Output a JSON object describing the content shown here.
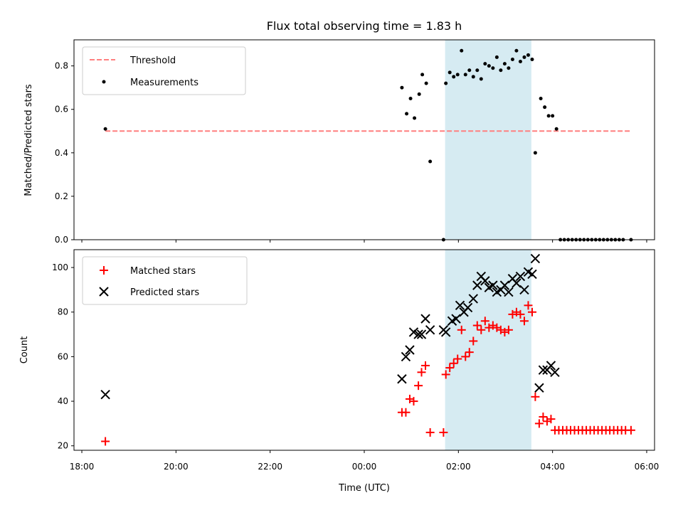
{
  "chart_data": [
    {
      "type": "scatter",
      "title": "Flux total observing time = 1.83 h",
      "xlabel": "",
      "ylabel": "Matched/Predicted stars",
      "ylim": [
        0,
        0.92
      ],
      "xlim": [
        "17:50",
        "06:10"
      ],
      "y_ticks": [
        "0.0",
        "0.2",
        "0.4",
        "0.6",
        "0.8"
      ],
      "legend": {
        "placement": "top-left",
        "entries": [
          "Threshold",
          "Measurements"
        ]
      },
      "threshold": {
        "name": "Threshold",
        "value": 0.5,
        "x_range": [
          "18:30",
          "05:40"
        ],
        "color": "#ff7f7f",
        "style": "dashed"
      },
      "highlight_span": {
        "x": [
          "01:43",
          "03:33"
        ],
        "color": "#add8e6"
      },
      "series": [
        {
          "name": "Measurements",
          "marker": "dot",
          "color": "#000000",
          "points": [
            [
              "18:30",
              0.51
            ],
            [
              "00:48",
              0.7
            ],
            [
              "00:54",
              0.58
            ],
            [
              "00:59",
              0.65
            ],
            [
              "01:04",
              0.56
            ],
            [
              "01:10",
              0.67
            ],
            [
              "01:14",
              0.76
            ],
            [
              "01:19",
              0.72
            ],
            [
              "01:24",
              0.36
            ],
            [
              "01:41",
              0.0
            ],
            [
              "01:44",
              0.72
            ],
            [
              "01:49",
              0.77
            ],
            [
              "01:54",
              0.75
            ],
            [
              "01:59",
              0.76
            ],
            [
              "02:04",
              0.87
            ],
            [
              "02:09",
              0.76
            ],
            [
              "02:14",
              0.78
            ],
            [
              "02:19",
              0.75
            ],
            [
              "02:24",
              0.78
            ],
            [
              "02:29",
              0.74
            ],
            [
              "02:34",
              0.81
            ],
            [
              "02:39",
              0.8
            ],
            [
              "02:44",
              0.79
            ],
            [
              "02:49",
              0.84
            ],
            [
              "02:54",
              0.78
            ],
            [
              "02:59",
              0.81
            ],
            [
              "03:04",
              0.79
            ],
            [
              "03:09",
              0.83
            ],
            [
              "03:14",
              0.87
            ],
            [
              "03:19",
              0.82
            ],
            [
              "03:24",
              0.84
            ],
            [
              "03:29",
              0.85
            ],
            [
              "03:34",
              0.83
            ],
            [
              "03:38",
              0.4
            ],
            [
              "03:45",
              0.65
            ],
            [
              "03:50",
              0.61
            ],
            [
              "03:55",
              0.57
            ],
            [
              "04:00",
              0.57
            ],
            [
              "04:05",
              0.51
            ],
            [
              "04:10",
              0.0
            ],
            [
              "04:15",
              0.0
            ],
            [
              "04:20",
              0.0
            ],
            [
              "04:25",
              0.0
            ],
            [
              "04:30",
              0.0
            ],
            [
              "04:35",
              0.0
            ],
            [
              "04:40",
              0.0
            ],
            [
              "04:45",
              0.0
            ],
            [
              "04:50",
              0.0
            ],
            [
              "04:55",
              0.0
            ],
            [
              "05:00",
              0.0
            ],
            [
              "05:05",
              0.0
            ],
            [
              "05:10",
              0.0
            ],
            [
              "05:15",
              0.0
            ],
            [
              "05:20",
              0.0
            ],
            [
              "05:25",
              0.0
            ],
            [
              "05:30",
              0.0
            ],
            [
              "05:40",
              0.0
            ]
          ]
        }
      ]
    },
    {
      "type": "scatter",
      "title": "",
      "xlabel": "Time (UTC)",
      "ylabel": "Count",
      "ylim": [
        18,
        108
      ],
      "xlim": [
        "17:50",
        "06:10"
      ],
      "x_ticks": [
        "18:00",
        "20:00",
        "22:00",
        "00:00",
        "02:00",
        "04:00",
        "06:00"
      ],
      "y_ticks": [
        "20",
        "40",
        "60",
        "80",
        "100"
      ],
      "legend": {
        "placement": "top-left",
        "entries": [
          "Matched stars",
          "Predicted stars"
        ]
      },
      "highlight_span": {
        "x": [
          "01:43",
          "03:33"
        ],
        "color": "#add8e6"
      },
      "series": [
        {
          "name": "Matched stars",
          "marker": "plus",
          "color": "#ff0000",
          "points": [
            [
              "18:30",
              22
            ],
            [
              "00:48",
              35
            ],
            [
              "00:53",
              35
            ],
            [
              "00:58",
              41
            ],
            [
              "01:03",
              40
            ],
            [
              "01:09",
              47
            ],
            [
              "01:13",
              53
            ],
            [
              "01:18",
              56
            ],
            [
              "01:24",
              26
            ],
            [
              "01:41",
              26
            ],
            [
              "01:44",
              52
            ],
            [
              "01:49",
              55
            ],
            [
              "01:54",
              57
            ],
            [
              "01:59",
              59
            ],
            [
              "02:04",
              72
            ],
            [
              "02:09",
              60
            ],
            [
              "02:14",
              62
            ],
            [
              "02:19",
              67
            ],
            [
              "02:24",
              74
            ],
            [
              "02:29",
              72
            ],
            [
              "02:34",
              76
            ],
            [
              "02:39",
              73
            ],
            [
              "02:44",
              74
            ],
            [
              "02:49",
              73
            ],
            [
              "02:54",
              72
            ],
            [
              "02:59",
              71
            ],
            [
              "03:04",
              72
            ],
            [
              "03:09",
              79
            ],
            [
              "03:14",
              80
            ],
            [
              "03:19",
              79
            ],
            [
              "03:24",
              76
            ],
            [
              "03:29",
              83
            ],
            [
              "03:34",
              80
            ],
            [
              "03:38",
              42
            ],
            [
              "03:43",
              30
            ],
            [
              "03:48",
              33
            ],
            [
              "03:53",
              31
            ],
            [
              "03:58",
              32
            ],
            [
              "04:03",
              27
            ],
            [
              "04:08",
              27
            ],
            [
              "04:13",
              27
            ],
            [
              "04:18",
              27
            ],
            [
              "04:23",
              27
            ],
            [
              "04:28",
              27
            ],
            [
              "04:33",
              27
            ],
            [
              "04:38",
              27
            ],
            [
              "04:43",
              27
            ],
            [
              "04:48",
              27
            ],
            [
              "04:53",
              27
            ],
            [
              "04:58",
              27
            ],
            [
              "05:03",
              27
            ],
            [
              "05:08",
              27
            ],
            [
              "05:13",
              27
            ],
            [
              "05:18",
              27
            ],
            [
              "05:23",
              27
            ],
            [
              "05:28",
              27
            ],
            [
              "05:33",
              27
            ],
            [
              "05:40",
              27
            ]
          ]
        },
        {
          "name": "Predicted stars",
          "marker": "x",
          "color": "#000000",
          "points": [
            [
              "18:30",
              43
            ],
            [
              "00:48",
              50
            ],
            [
              "00:53",
              60
            ],
            [
              "00:58",
              63
            ],
            [
              "01:03",
              71
            ],
            [
              "01:09",
              70
            ],
            [
              "01:13",
              70
            ],
            [
              "01:18",
              77
            ],
            [
              "01:24",
              72
            ],
            [
              "01:41",
              72
            ],
            [
              "01:44",
              71
            ],
            [
              "01:52",
              76
            ],
            [
              "01:57",
              77
            ],
            [
              "02:02",
              83
            ],
            [
              "02:07",
              80
            ],
            [
              "02:12",
              82
            ],
            [
              "02:19",
              86
            ],
            [
              "02:24",
              92
            ],
            [
              "02:29",
              96
            ],
            [
              "02:34",
              94
            ],
            [
              "02:39",
              91
            ],
            [
              "02:44",
              92
            ],
            [
              "02:49",
              89
            ],
            [
              "02:54",
              90
            ],
            [
              "02:59",
              92
            ],
            [
              "03:04",
              89
            ],
            [
              "03:09",
              95
            ],
            [
              "03:14",
              93
            ],
            [
              "03:19",
              96
            ],
            [
              "03:24",
              90
            ],
            [
              "03:29",
              98
            ],
            [
              "03:34",
              97
            ],
            [
              "03:38",
              104
            ],
            [
              "03:43",
              46
            ],
            [
              "03:48",
              54
            ],
            [
              "03:53",
              54
            ],
            [
              "03:58",
              56
            ],
            [
              "04:03",
              53
            ]
          ]
        }
      ]
    }
  ]
}
